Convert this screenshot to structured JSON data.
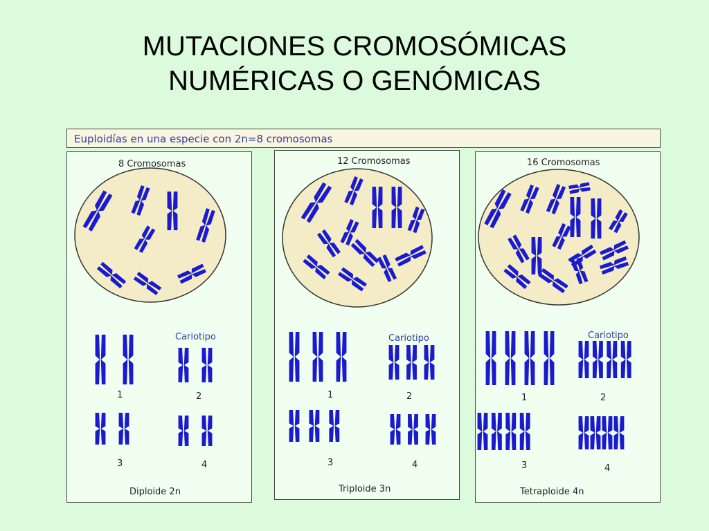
{
  "slide": {
    "title_line1": "MUTACIONES CROMOSÓMICAS",
    "title_line2": "NUMÉRICAS O GENÓMICAS"
  },
  "figure": {
    "caption": "Euploidías en una especie con 2n=8 cromosomas",
    "panels": [
      {
        "count_label": "8 Cromosomas",
        "karyotype_label": "Cariotipo",
        "group_numbers": [
          "1",
          "2",
          "3",
          "4"
        ],
        "ploidy_label": "Diploide 2n",
        "copies_per_chromosome": 2
      },
      {
        "count_label": "12 Cromosomas",
        "karyotype_label": "Cariotipo",
        "group_numbers": [
          "1",
          "2",
          "3",
          "4"
        ],
        "ploidy_label": "Triploide 3n",
        "copies_per_chromosome": 3
      },
      {
        "count_label": "16 Cromosomas",
        "karyotype_label": "Cariotipo",
        "group_numbers": [
          "1",
          "2",
          "3",
          "4"
        ],
        "ploidy_label": "Tetraploide 4n",
        "copies_per_chromosome": 4
      }
    ]
  },
  "colors": {
    "background": "#dcfadc",
    "chromosome": "#1a1acf",
    "cell": "#f3ecc6",
    "label": "#3040a0"
  }
}
